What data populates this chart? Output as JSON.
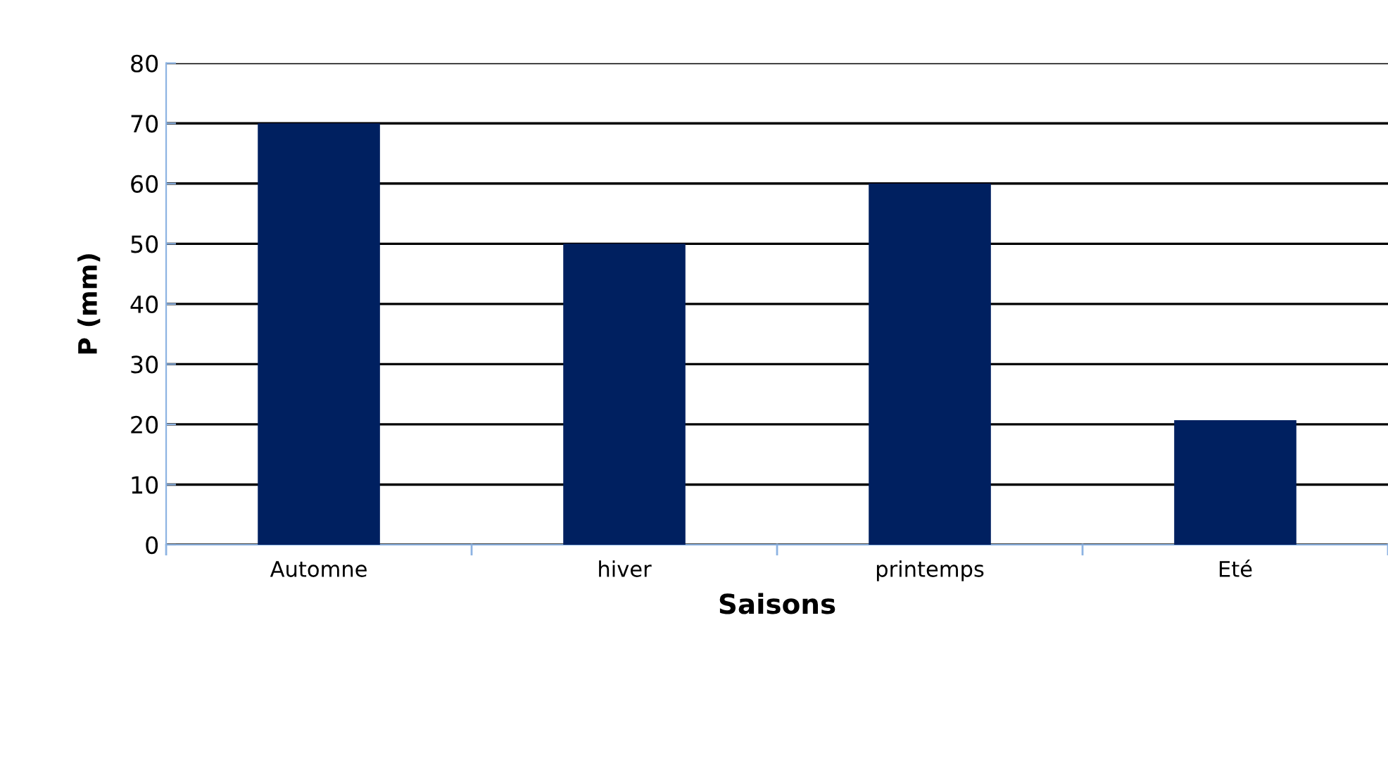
{
  "chart_data": {
    "type": "bar",
    "xlabel": "Saisons",
    "ylabel": "P (mm)",
    "categories": [
      "Automne",
      "hiver",
      "printemps",
      "Eté"
    ],
    "values": [
      70,
      50,
      60,
      20.7
    ],
    "color": "#002060",
    "ylim": [
      0,
      80
    ],
    "yticks": [
      0,
      10,
      20,
      30,
      40,
      50,
      60,
      70,
      80
    ],
    "grid": "y",
    "legend": false
  }
}
